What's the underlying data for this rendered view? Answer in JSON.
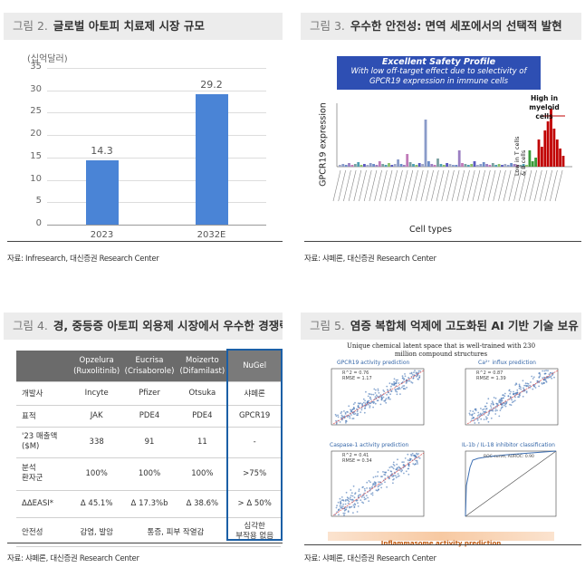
{
  "panel2": {
    "num": "그림 2.",
    "title": "글로벌 아토피 치료제 시장 규모",
    "unit": "(십억달러)",
    "source": "자료: Infresearch, 대신증권 Research Center",
    "chart_data": {
      "type": "bar",
      "categories": [
        "2023",
        "2032E"
      ],
      "values": [
        14.3,
        29.2
      ],
      "value_labels": [
        "14.3",
        "29.2"
      ],
      "ylim": [
        0,
        35
      ],
      "yticks": [
        "0",
        "5",
        "10",
        "15",
        "20",
        "25",
        "30",
        "35"
      ],
      "color": "#4a84d6",
      "grid": true
    }
  },
  "panel3": {
    "num": "그림 3.",
    "title": "우수한 안전성: 면역 세포에서의 선택적 발현",
    "banner_title": "Excellent Safety Profile",
    "banner_line1": "With low off-target effect due to selectivity of",
    "banner_line2": "GPCR19 expression in immune cells",
    "ylabel": "GPCR19 expression",
    "xlabel": "Cell types",
    "high_label": "High in myeloid cells",
    "low_label": "Low in T cells & B cells",
    "source": "자료: 샤페론, 대신증권 Research Center",
    "colors": {
      "banner": "#2e4fb3",
      "high": "#c00000"
    }
  },
  "panel4": {
    "num": "그림 4.",
    "title": "경, 중등증 아토피 외용제 시장에서 우수한 경쟁력",
    "headers": [
      {
        "name": "Opzelura",
        "sub": "(Ruxolitinib)"
      },
      {
        "name": "Eucrisa",
        "sub": "(Crisaborole)"
      },
      {
        "name": "Moizerto",
        "sub": "(Difamilast)"
      },
      {
        "name": "NuGel",
        "sub": ""
      }
    ],
    "rows": [
      {
        "label": "개발사",
        "cells": [
          "Incyte",
          "Pfizer",
          "Otsuka",
          "샤페론"
        ]
      },
      {
        "label": "표적",
        "cells": [
          "JAK",
          "PDE4",
          "PDE4",
          "GPCR19"
        ]
      },
      {
        "label": "'23 매출액\n($M)",
        "cells": [
          "338",
          "91",
          "11",
          "-"
        ]
      },
      {
        "label": "분석\n환자군",
        "cells": [
          "100%",
          "100%",
          "100%",
          ">75%"
        ]
      },
      {
        "label": "ΔΔEASI*",
        "cells": [
          "Δ 45.1%",
          "Δ 17.3%b",
          "Δ 38.6%",
          "> Δ 50%"
        ]
      },
      {
        "label": "안전성",
        "cells": [
          "감염, 발암",
          "통증, 피부 작열감",
          "",
          "심각한\n부작용 없음"
        ]
      }
    ],
    "source": "자료: 샤페론, 대신증권 Research Center"
  },
  "panel5": {
    "num": "그림 5.",
    "title": "염증 복합체 억제에 고도화된 AI 기반 기술 보유",
    "caption": "Unique chemical latent space that is well-trained with 230 million compound structures",
    "plots": [
      {
        "title": "GPCR19 activity prediction",
        "stat": "R^2 = 0.76\nRMSE = 1.17"
      },
      {
        "title": "Ca²⁺ influx prediction",
        "stat": "R^2 = 0.87\nRMSE = 1.39"
      },
      {
        "title": "Caspase-1 activity prediction",
        "stat": "R^2 = 0.41\nRMSE = 0.34"
      },
      {
        "title": "IL-1b / IL-18 inhibitor classification",
        "stat": "ROC curve, AUROC: 0.90"
      }
    ],
    "footer": "Inflammasome activity prediction",
    "source": "자료: 샤페론, 대신증권 Research Center"
  }
}
